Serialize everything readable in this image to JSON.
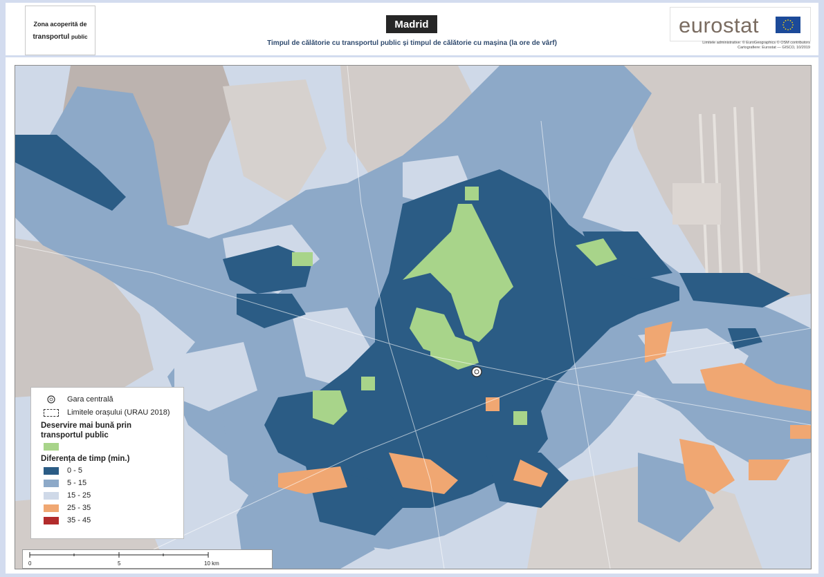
{
  "header": {
    "zone_line1": "Zona acoperită de",
    "zone_line2_main": "transportul",
    "zone_line2_small": "public",
    "city": "Madrid",
    "subtitle": "Timpul de călătorie cu transportul public și timpul de călătorie cu mașina (la ore de vârf)",
    "logo_text": "eurostat",
    "credits_line1": "Limitele administrative: © EuroGeographics © OSM contributors",
    "credits_line2": "Cartografiere: Eurostat — GISCO, 10/2019"
  },
  "legend": {
    "station_label": "Gara centrală",
    "city_limits_label": "Limitele orașului (URAU 2018)",
    "better_title": "Deservire mai bună prin transportul public",
    "diff_title": "Diferența de timp (min.)",
    "classes": [
      {
        "label": "0 - 5",
        "color": "#2b5c85"
      },
      {
        "label": "5 - 15",
        "color": "#8da9c8"
      },
      {
        "label": "15 - 25",
        "color": "#cfd9e8"
      },
      {
        "label": "25 - 35",
        "color": "#f0a772"
      },
      {
        "label": "35 - 45",
        "color": "#b22c2c"
      }
    ],
    "better_color": "#a8d48a"
  },
  "scalebar": {
    "ticks": [
      "0",
      "5",
      "10 km"
    ]
  },
  "icons": {
    "station": "station-pin-icon",
    "flag": "eu-flag-icon"
  }
}
